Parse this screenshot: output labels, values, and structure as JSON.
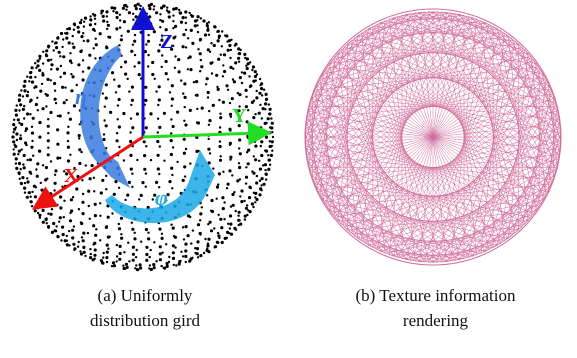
{
  "panels": [
    {
      "caption": "(a) Uniformly distribution gird",
      "axes": {
        "z": "Z",
        "y": "Y",
        "x": "X"
      },
      "rotations": {
        "eta": "η",
        "phi": "φ"
      }
    },
    {
      "caption": "(b) Texture information rendering"
    }
  ]
}
